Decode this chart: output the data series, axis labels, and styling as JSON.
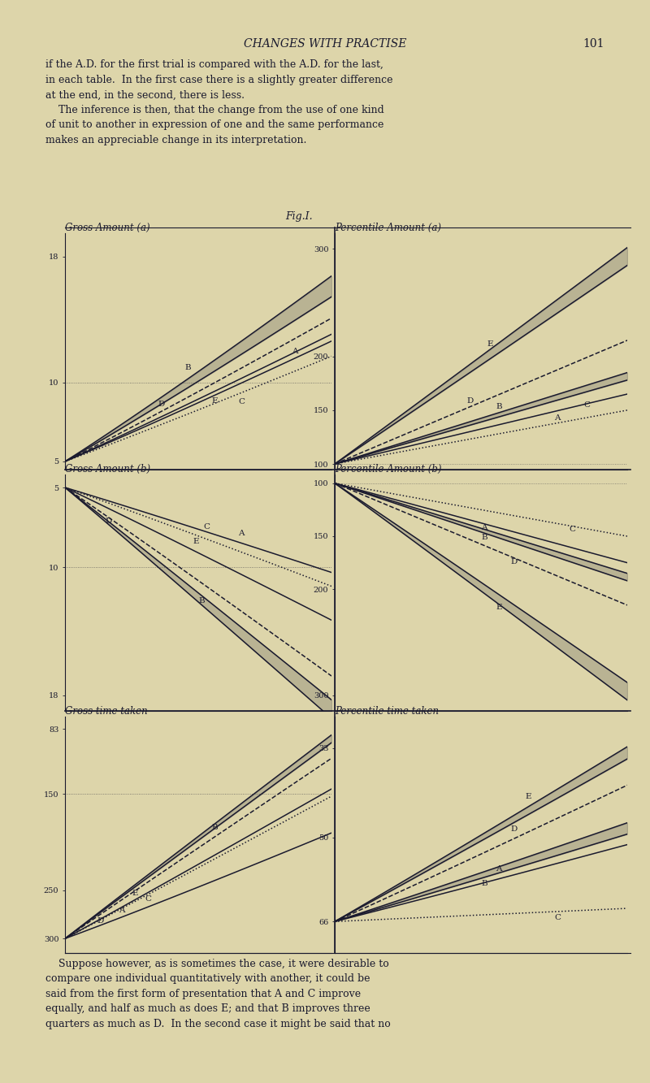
{
  "bg_color": "#ddd5aa",
  "line_color": "#1a1a2e",
  "fig_label": "Fig.I.",
  "header_text": "CHANGES WITH PRACTISE",
  "page_num": "101",
  "body_top": "if the A.D. for the first trial is compared with the A.D. for the last,\nin each table.  In the first case there is a slightly greater difference\nat the end, in the second, there is less.\n    The inference is then, that the change from the use of one kind\nof unit to another in expression of one and the same performance\nmakes an appreciable change in its interpretation.",
  "body_bottom": "    Suppose however, as is sometimes the case, it were desirable to\ncompare one individual quantitatively with another, it could be\nsaid from the first form of presentation that A and C improve\nequally, and half as much as does E; and that B improves three\nquarters as much as D.  In the second case it might be said that no"
}
